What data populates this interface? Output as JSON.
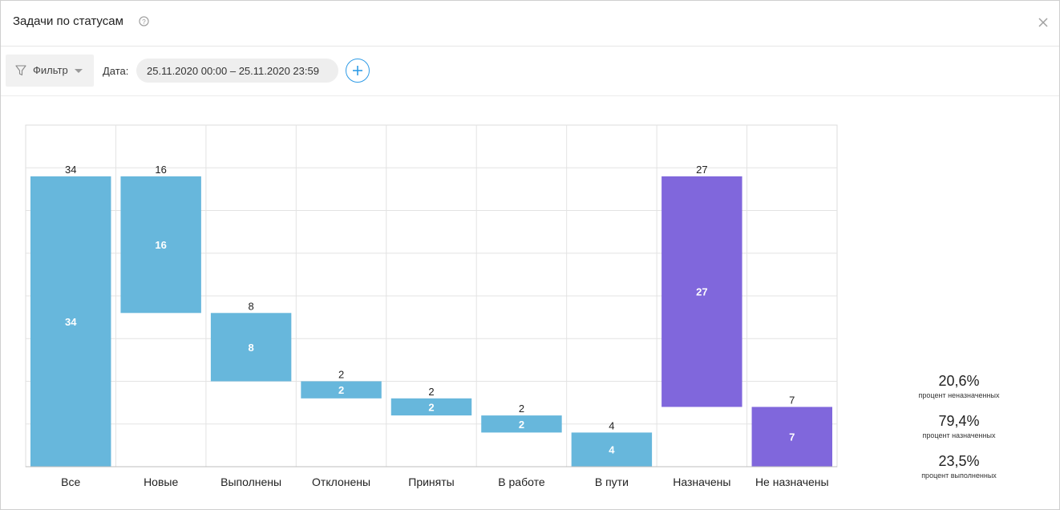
{
  "header": {
    "title": "Задачи по статусам"
  },
  "toolbar": {
    "filter_label": "Фильтр",
    "date_label": "Дата:",
    "date_range": "25.11.2020 00:00 – 25.11.2020 23:59"
  },
  "icons": {
    "help": "question-circle-icon",
    "close": "close-icon",
    "filter": "funnel-icon",
    "caret": "caret-down-icon",
    "add": "plus-icon"
  },
  "colors": {
    "blue": "#67b7dc",
    "purple": "#8067dc",
    "accent": "#2e9be6"
  },
  "chart_data": {
    "type": "bar",
    "subtype": "waterfall",
    "categories": [
      "Все",
      "Новые",
      "Выполнены",
      "Отклонены",
      "Приняты",
      "В работе",
      "В пути",
      "Назначены",
      "Не назначены"
    ],
    "values": [
      34,
      16,
      8,
      2,
      2,
      2,
      4,
      27,
      7
    ],
    "bar_ranges": [
      [
        0,
        34
      ],
      [
        18,
        34
      ],
      [
        10,
        18
      ],
      [
        8,
        10
      ],
      [
        6,
        8
      ],
      [
        4,
        6
      ],
      [
        0,
        4
      ],
      [
        7,
        34
      ],
      [
        0,
        7
      ]
    ],
    "bar_colors": [
      "#67b7dc",
      "#67b7dc",
      "#67b7dc",
      "#67b7dc",
      "#67b7dc",
      "#67b7dc",
      "#67b7dc",
      "#8067dc",
      "#8067dc"
    ],
    "ylim": [
      0,
      40
    ],
    "grid": true
  },
  "stats": [
    {
      "value": "20,6%",
      "label": "процент неназначенных"
    },
    {
      "value": "79,4%",
      "label": "процент назначенных"
    },
    {
      "value": "23,5%",
      "label": "процент выполненных"
    }
  ]
}
